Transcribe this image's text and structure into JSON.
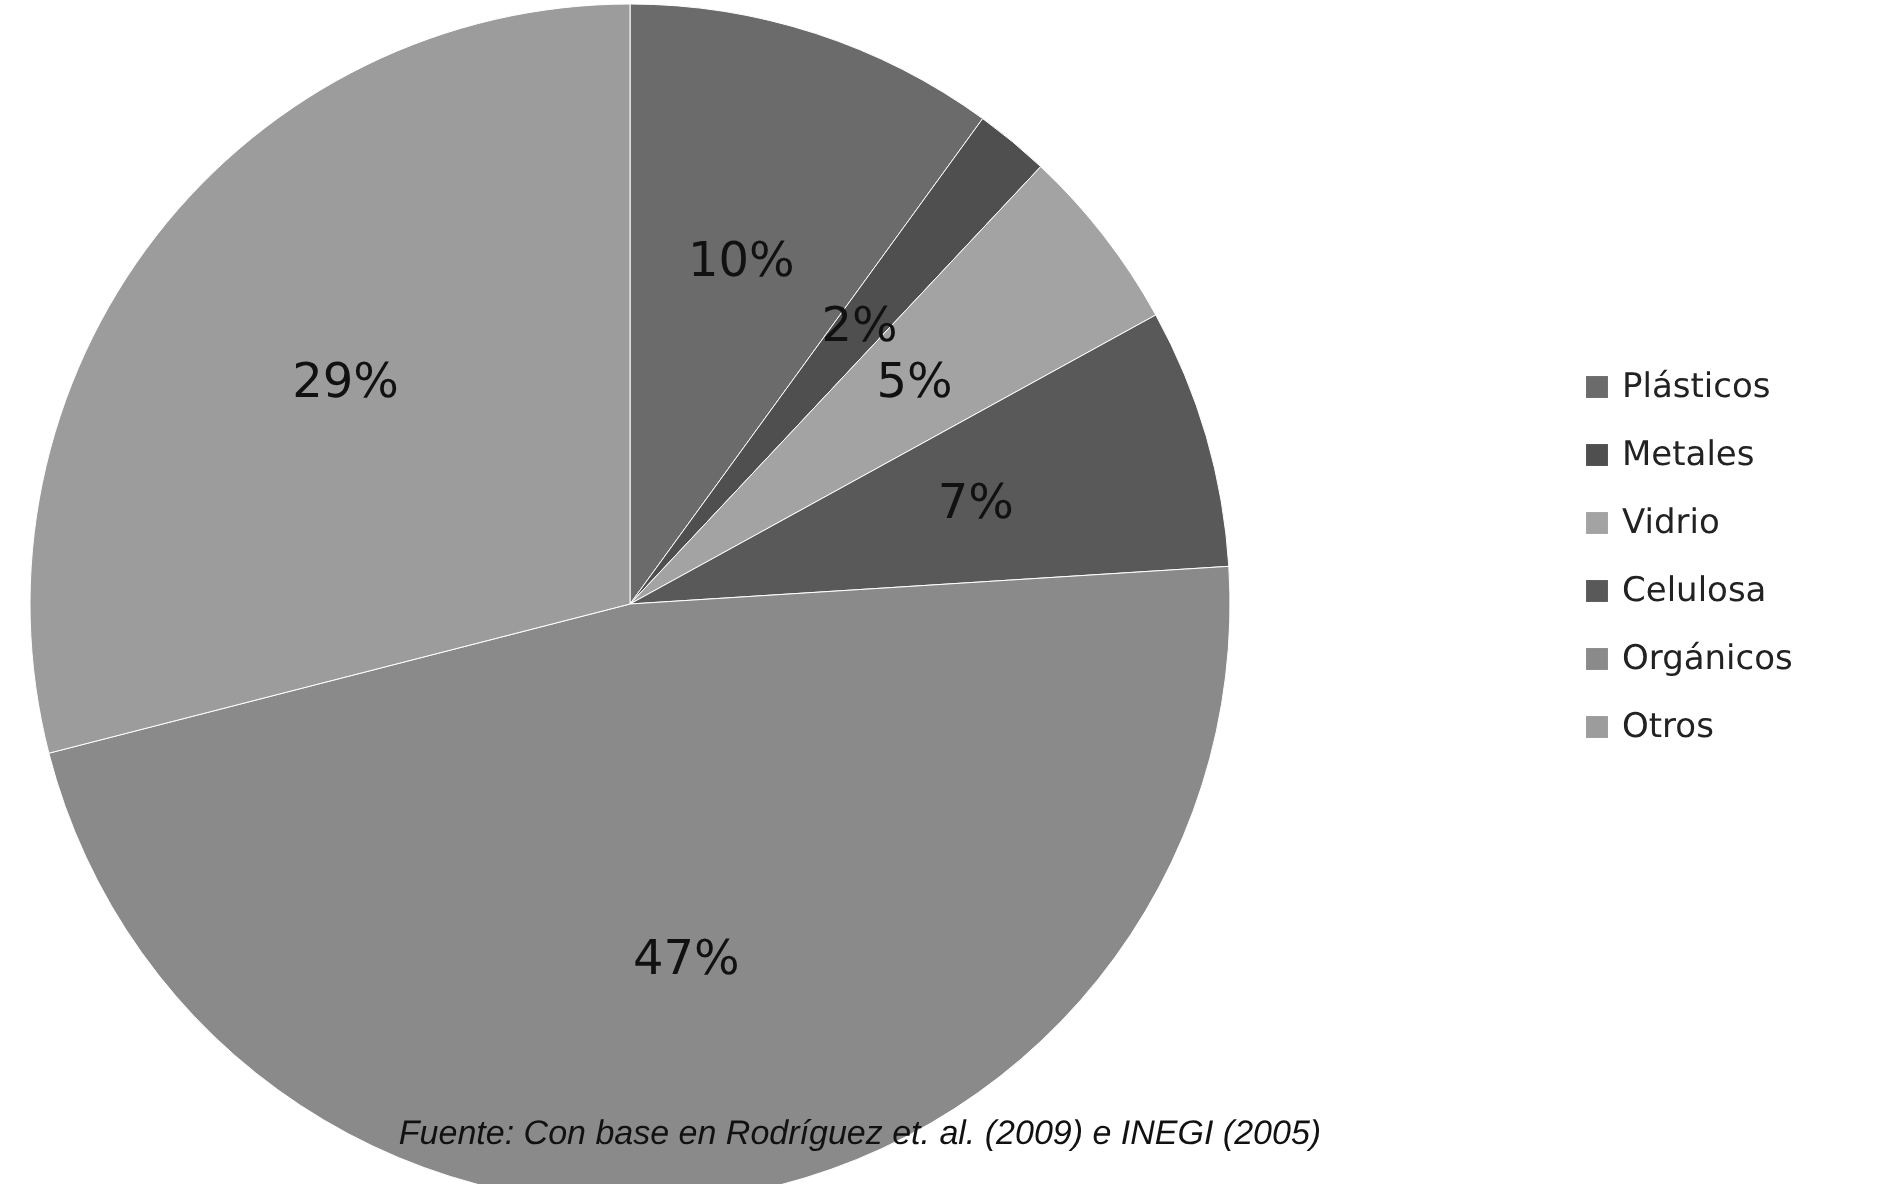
{
  "chart_data": {
    "type": "pie",
    "categories": [
      "Plásticos",
      "Metales",
      "Vidrio",
      "Celulosa",
      "Orgánicos",
      "Otros"
    ],
    "values": [
      10,
      2,
      5,
      7,
      47,
      29
    ],
    "value_labels": [
      "10%",
      "2%",
      "5%",
      "7%",
      "47%",
      "29%"
    ],
    "colors": [
      "#6b6b6b",
      "#4f4f4f",
      "#a3a3a3",
      "#595959",
      "#8a8a8a",
      "#9c9c9c"
    ],
    "legend": "right",
    "annotations": [
      "Fuente: Con base en Rodríguez et. al. (2009) e INEGI (2005)"
    ]
  }
}
